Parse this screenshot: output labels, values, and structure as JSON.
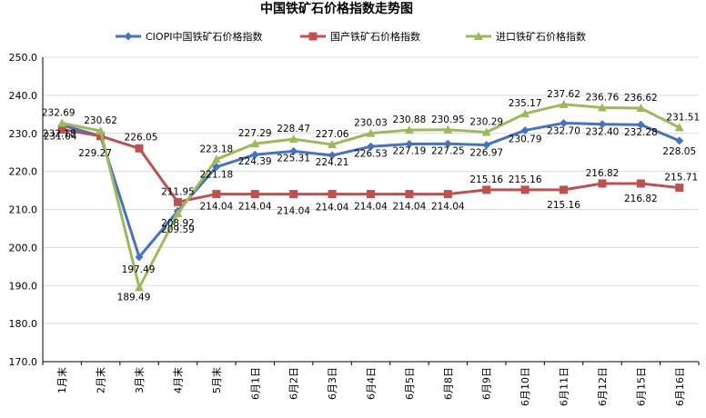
{
  "chart_data": {
    "type": "line",
    "title": "中国铁矿石价格指数走势图",
    "categories": [
      "1月末",
      "2月末",
      "3月末",
      "4月末",
      "5月末",
      "6月1日",
      "6月2日",
      "6月3日",
      "6月4日",
      "6月5日",
      "6月8日",
      "6月9日",
      "6月10日",
      "6月11日",
      "6月12日",
      "6月15日",
      "6月16日"
    ],
    "ylim": [
      170,
      250
    ],
    "yticks": [
      "170.0",
      "180.0",
      "190.0",
      "200.0",
      "210.0",
      "220.0",
      "230.0",
      "240.0",
      "250.0"
    ],
    "grid": true,
    "legend_position": "top",
    "series": [
      {
        "name": "CIOPI中国铁矿石价格指数",
        "color": "#4472C4",
        "marker": "diamond",
        "values": [
          232.18,
          229.27,
          197.49,
          209.59,
          221.18,
          224.39,
          225.31,
          224.21,
          226.53,
          227.19,
          227.25,
          226.97,
          230.79,
          232.7,
          232.4,
          232.28,
          228.05
        ],
        "labels": [
          "232.18",
          "229.27",
          "197.49",
          "209.59",
          "221.18",
          "224.39",
          "225.31",
          "224.21",
          "226.53",
          "227.19",
          "227.25",
          "226.97",
          "230.79",
          "232.70",
          "232.40",
          "232.28",
          "228.05"
        ]
      },
      {
        "name": "国产铁矿石价格指数",
        "color": "#C0504D",
        "marker": "square",
        "values": [
          231.04,
          229.27,
          226.05,
          211.95,
          214.04,
          214.04,
          214.04,
          214.04,
          214.04,
          214.04,
          214.04,
          215.16,
          215.16,
          215.16,
          216.82,
          216.82,
          215.71
        ],
        "labels": [
          "231.04",
          "",
          "226.05",
          "211.95",
          "214.04",
          "214.04",
          "214.04",
          "214.04",
          "214.04",
          "214.04",
          "214.04",
          "215.16",
          "215.16",
          "215.16",
          "216.82",
          "216.82",
          "215.71"
        ]
      },
      {
        "name": "进口铁矿石价格指数",
        "color": "#9BBB59",
        "marker": "triangle",
        "values": [
          232.69,
          230.62,
          189.49,
          208.92,
          223.18,
          227.29,
          228.47,
          227.06,
          230.03,
          230.88,
          230.95,
          230.29,
          235.17,
          237.62,
          236.76,
          236.62,
          231.51
        ],
        "labels": [
          "232.69",
          "230.62",
          "189.49",
          "208.92",
          "223.18",
          "227.29",
          "228.47",
          "227.06",
          "230.03",
          "230.88",
          "230.95",
          "230.29",
          "235.17",
          "237.62",
          "236.76",
          "236.62",
          "231.51"
        ]
      }
    ]
  }
}
